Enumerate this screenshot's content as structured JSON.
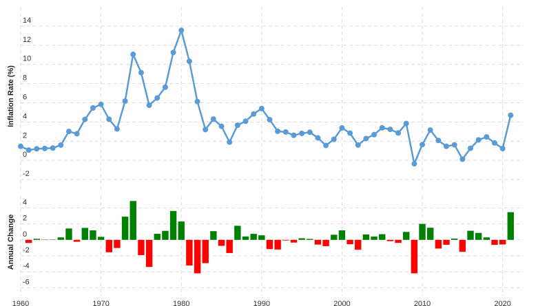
{
  "chart_data": [
    {
      "type": "line",
      "ylabel": "Inflation Rate (%)",
      "color": "#5b9bd5",
      "x": [
        1960,
        1961,
        1962,
        1963,
        1964,
        1965,
        1966,
        1967,
        1968,
        1969,
        1970,
        1971,
        1972,
        1973,
        1974,
        1975,
        1976,
        1977,
        1978,
        1979,
        1980,
        1981,
        1982,
        1983,
        1984,
        1985,
        1986,
        1987,
        1988,
        1989,
        1990,
        1991,
        1992,
        1993,
        1994,
        1995,
        1996,
        1997,
        1998,
        1999,
        2000,
        2001,
        2002,
        2003,
        2004,
        2005,
        2006,
        2007,
        2008,
        2009,
        2010,
        2011,
        2012,
        2013,
        2014,
        2015,
        2016,
        2017,
        2018,
        2019,
        2020,
        2021
      ],
      "values": [
        1.46,
        1.07,
        1.2,
        1.24,
        1.28,
        1.59,
        3.01,
        2.77,
        4.27,
        5.46,
        5.84,
        4.29,
        3.27,
        6.18,
        11.05,
        9.14,
        5.74,
        6.5,
        7.63,
        11.25,
        13.55,
        10.33,
        6.13,
        3.21,
        4.3,
        3.55,
        1.9,
        3.66,
        4.08,
        4.83,
        5.4,
        4.24,
        3.03,
        2.95,
        2.61,
        2.81,
        2.93,
        2.34,
        1.55,
        2.19,
        3.38,
        2.83,
        1.59,
        2.27,
        2.68,
        3.39,
        3.23,
        2.85,
        3.84,
        -0.36,
        1.64,
        3.16,
        2.07,
        1.46,
        1.62,
        0.12,
        1.26,
        2.13,
        2.44,
        1.81,
        1.23,
        4.7
      ],
      "xlim": [
        1960,
        2022.6
      ],
      "xticks": [
        1960,
        1970,
        1980,
        1990,
        2000,
        2010,
        2020
      ],
      "ylim": [
        -3,
        16
      ],
      "yticks": [
        -2,
        0,
        2,
        4,
        6,
        8,
        10,
        12,
        14
      ],
      "grid": true
    },
    {
      "type": "bar",
      "ylabel": "Annual Change",
      "positive_color": "#008000",
      "negative_color": "#ff0000",
      "x": [
        1961,
        1962,
        1963,
        1964,
        1965,
        1966,
        1967,
        1968,
        1969,
        1970,
        1971,
        1972,
        1973,
        1974,
        1975,
        1976,
        1977,
        1978,
        1979,
        1980,
        1981,
        1982,
        1983,
        1984,
        1985,
        1986,
        1987,
        1988,
        1989,
        1990,
        1991,
        1992,
        1993,
        1994,
        1995,
        1996,
        1997,
        1998,
        1999,
        2000,
        2001,
        2002,
        2003,
        2004,
        2005,
        2006,
        2007,
        2008,
        2009,
        2010,
        2011,
        2012,
        2013,
        2014,
        2015,
        2016,
        2017,
        2018,
        2019,
        2020,
        2021
      ],
      "values": [
        -0.39,
        0.13,
        0.04,
        0.04,
        0.31,
        1.42,
        -0.24,
        1.5,
        1.19,
        0.38,
        -1.55,
        -1.02,
        2.91,
        4.87,
        -1.91,
        -3.4,
        0.76,
        1.13,
        3.62,
        2.3,
        -3.22,
        -4.2,
        -2.92,
        1.09,
        -0.75,
        -1.65,
        1.76,
        0.42,
        0.75,
        0.57,
        -1.16,
        -1.21,
        -0.08,
        -0.34,
        0.2,
        0.12,
        -0.59,
        -0.79,
        0.64,
        1.19,
        -0.55,
        -1.24,
        0.68,
        0.41,
        0.71,
        -0.16,
        -0.38,
        0.99,
        -4.2,
        2.0,
        1.52,
        -1.09,
        -0.61,
        0.16,
        -1.5,
        1.14,
        0.87,
        0.31,
        -0.63,
        -0.58,
        3.47
      ],
      "xlim": [
        1960,
        2022.6
      ],
      "xticks": [
        1960,
        1970,
        1980,
        1990,
        2000,
        2010,
        2020
      ],
      "ylim": [
        -7,
        5.5
      ],
      "yticks": [
        -6,
        -4,
        -2,
        0,
        2,
        4
      ],
      "grid": true
    }
  ]
}
